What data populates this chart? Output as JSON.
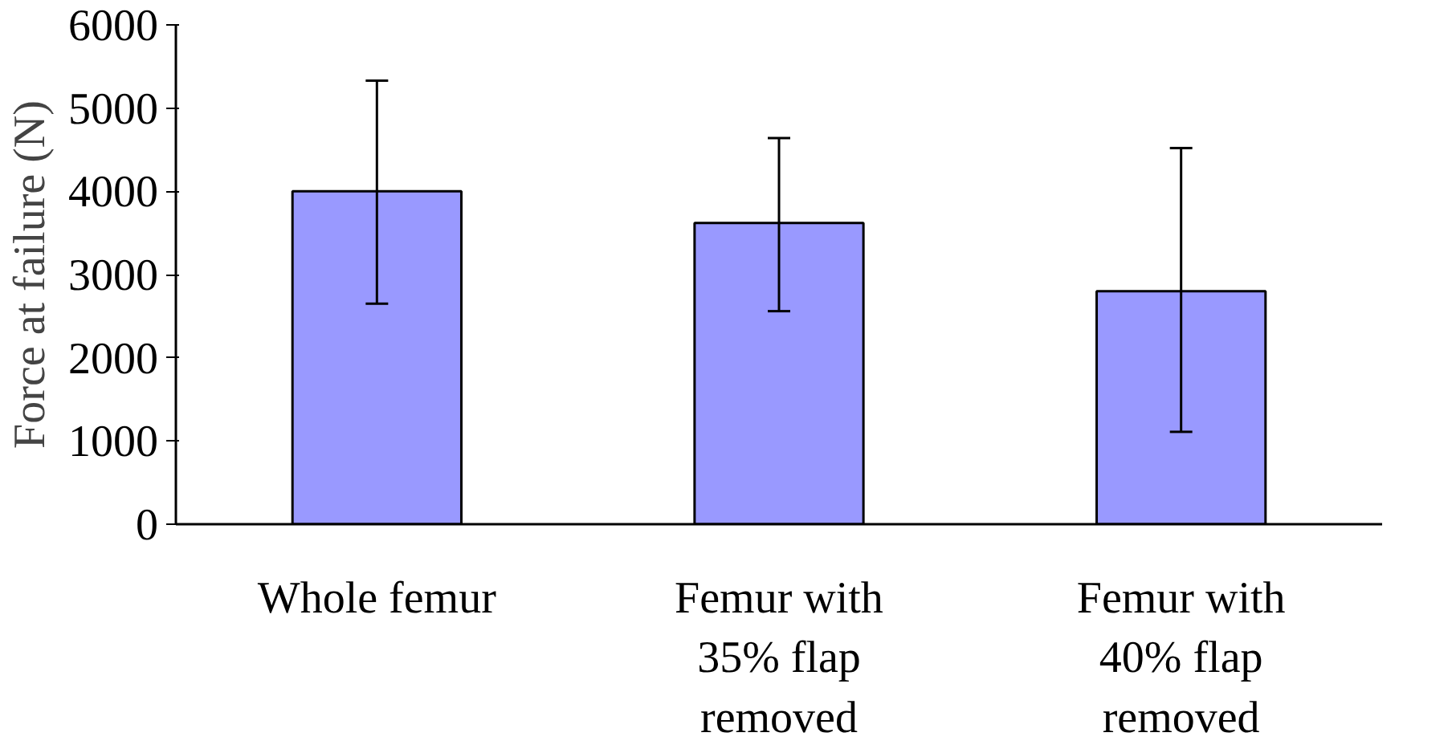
{
  "chart_data": {
    "type": "bar",
    "ylabel": "Force at failure (N)",
    "categories": [
      "Whole femur",
      "Femur with\n35% flap\nremoved",
      "Femur with\n40% flap\nremoved"
    ],
    "values": [
      4000,
      3620,
      2800
    ],
    "errors": [
      [
        2650,
        5330
      ],
      [
        2560,
        4640
      ],
      [
        1110,
        4520
      ]
    ],
    "color": "#9999ff",
    "ylim": [
      0,
      6000
    ],
    "yticks": [
      0,
      1000,
      2000,
      3000,
      4000,
      5000,
      6000
    ],
    "grid": false
  }
}
